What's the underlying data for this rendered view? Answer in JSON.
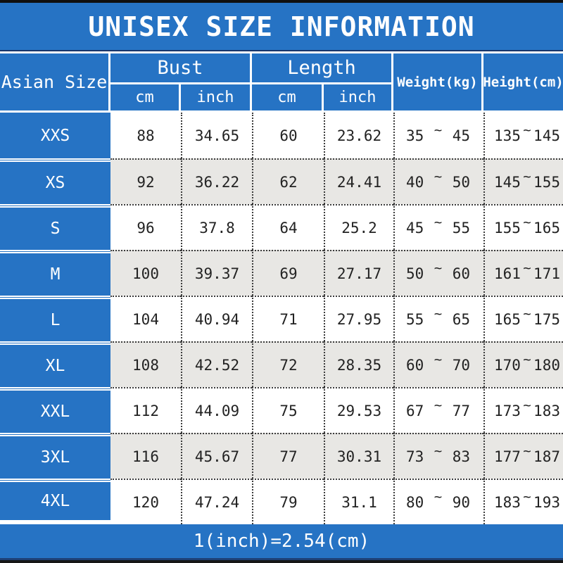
{
  "title": "UNISEX SIZE INFORMATION",
  "header": {
    "size_col": "Asian Size",
    "groups": [
      {
        "label": "Bust",
        "units": [
          "cm",
          "inch"
        ]
      },
      {
        "label": "Length",
        "units": [
          "cm",
          "inch"
        ]
      }
    ],
    "weight": "Weight(kg)",
    "height": "Height(cm)"
  },
  "range_separator": "~",
  "rows": [
    {
      "size": "XXS",
      "bust_cm": "88",
      "bust_inch": "34.65",
      "len_cm": "60",
      "len_inch": "23.62",
      "weight": [
        "35",
        "45"
      ],
      "height": [
        "135",
        "145"
      ]
    },
    {
      "size": "XS",
      "bust_cm": "92",
      "bust_inch": "36.22",
      "len_cm": "62",
      "len_inch": "24.41",
      "weight": [
        "40",
        "50"
      ],
      "height": [
        "145",
        "155"
      ]
    },
    {
      "size": "S",
      "bust_cm": "96",
      "bust_inch": "37.8",
      "len_cm": "64",
      "len_inch": "25.2",
      "weight": [
        "45",
        "55"
      ],
      "height": [
        "155",
        "165"
      ]
    },
    {
      "size": "M",
      "bust_cm": "100",
      "bust_inch": "39.37",
      "len_cm": "69",
      "len_inch": "27.17",
      "weight": [
        "50",
        "60"
      ],
      "height": [
        "161",
        "171"
      ]
    },
    {
      "size": "L",
      "bust_cm": "104",
      "bust_inch": "40.94",
      "len_cm": "71",
      "len_inch": "27.95",
      "weight": [
        "55",
        "65"
      ],
      "height": [
        "165",
        "175"
      ]
    },
    {
      "size": "XL",
      "bust_cm": "108",
      "bust_inch": "42.52",
      "len_cm": "72",
      "len_inch": "28.35",
      "weight": [
        "60",
        "70"
      ],
      "height": [
        "170",
        "180"
      ]
    },
    {
      "size": "XXL",
      "bust_cm": "112",
      "bust_inch": "44.09",
      "len_cm": "75",
      "len_inch": "29.53",
      "weight": [
        "67",
        "77"
      ],
      "height": [
        "173",
        "183"
      ]
    },
    {
      "size": "3XL",
      "bust_cm": "116",
      "bust_inch": "45.67",
      "len_cm": "77",
      "len_inch": "30.31",
      "weight": [
        "73",
        "83"
      ],
      "height": [
        "177",
        "187"
      ]
    },
    {
      "size": "4XL",
      "bust_cm": "120",
      "bust_inch": "47.24",
      "len_cm": "79",
      "len_inch": "31.1",
      "weight": [
        "80",
        "90"
      ],
      "height": [
        "183",
        "193"
      ]
    }
  ],
  "footer": {
    "note": "1(inch)=2.54(cm)"
  },
  "colors": {
    "blue": "#2673c4",
    "row_alt": "#e8e7e4",
    "navy_line": "#1e4076",
    "text": "#222222"
  },
  "chart_data": {
    "type": "table",
    "title": "UNISEX SIZE INFORMATION",
    "columns": [
      "Asian Size",
      "Bust cm",
      "Bust inch",
      "Length cm",
      "Length inch",
      "Weight(kg)",
      "Height(cm)"
    ],
    "rows": [
      [
        "XXS",
        "88",
        "34.65",
        "60",
        "23.62",
        "35 ~ 45",
        "135 ~ 145"
      ],
      [
        "XS",
        "92",
        "36.22",
        "62",
        "24.41",
        "40 ~ 50",
        "145 ~ 155"
      ],
      [
        "S",
        "96",
        "37.8",
        "64",
        "25.2",
        "45 ~ 55",
        "155 ~ 165"
      ],
      [
        "M",
        "100",
        "39.37",
        "69",
        "27.17",
        "50 ~ 60",
        "161 ~ 171"
      ],
      [
        "L",
        "104",
        "40.94",
        "71",
        "27.95",
        "55 ~ 65",
        "165 ~ 175"
      ],
      [
        "XL",
        "108",
        "42.52",
        "72",
        "28.35",
        "60 ~ 70",
        "170 ~ 180"
      ],
      [
        "XXL",
        "112",
        "44.09",
        "75",
        "29.53",
        "67 ~ 77",
        "173 ~ 183"
      ],
      [
        "3XL",
        "116",
        "45.67",
        "77",
        "30.31",
        "73 ~ 83",
        "177 ~ 187"
      ],
      [
        "4XL",
        "120",
        "47.24",
        "79",
        "31.1",
        "80 ~ 90",
        "183 ~ 193"
      ]
    ],
    "note": "1(inch)=2.54(cm)"
  }
}
